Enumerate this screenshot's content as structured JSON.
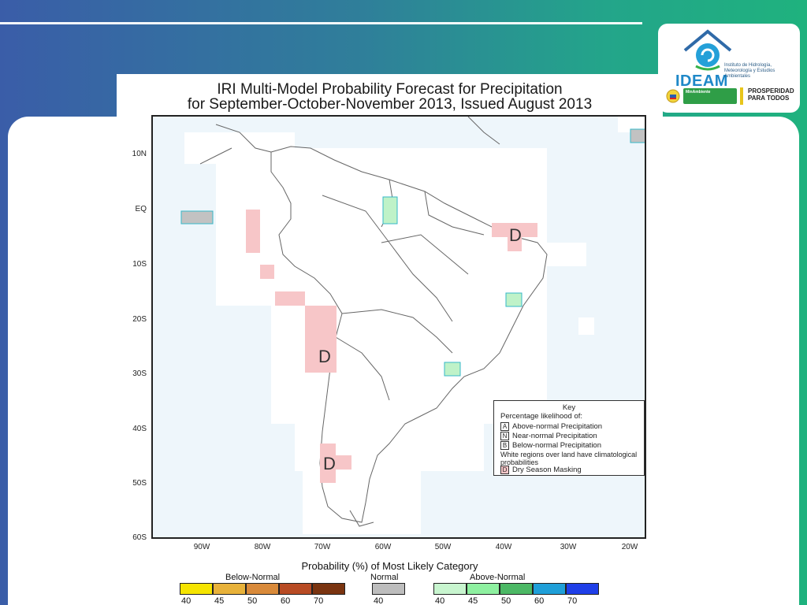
{
  "logo": {
    "ideam_name": "IDEAM",
    "ideam_subtitle": "Instituto de Hidrología, Meteorología y Estudios Ambientales",
    "minambiente_label": "MinAmbiente",
    "prosperidad_line1": "PROSPERIDAD",
    "prosperidad_line2": "PARA TODOS",
    "colors": {
      "ideam_blue": "#1f88c8",
      "minambiente_green": "#2f9e47"
    }
  },
  "map": {
    "title_line1": "IRI Multi-Model Probability Forecast for Precipitation",
    "title_line2": "for September-October-November 2013, Issued August 2013",
    "lat_labels": [
      "10N",
      "EQ",
      "10S",
      "20S",
      "30S",
      "40S",
      "50S",
      "60S"
    ],
    "lon_labels": [
      "90W",
      "80W",
      "70W",
      "60W",
      "50W",
      "40W",
      "30W",
      "20W"
    ],
    "dry_season_marks": [
      "D",
      "D",
      "D"
    ],
    "key": {
      "title": "Key",
      "subtitle": "Percentage likelihood of:",
      "items": [
        {
          "letter": "A",
          "label": "Above-normal Precipitation"
        },
        {
          "letter": "N",
          "label": "Near-normal Precipitation"
        },
        {
          "letter": "B",
          "label": "Below-normal Precipitation"
        }
      ],
      "note": "White regions over land have climatological probabilities",
      "dry_letter": "D",
      "dry_label": "Dry Season Masking"
    }
  },
  "colorbar": {
    "title": "Probability (%) of Most Likely Category",
    "below_label": "Below-Normal",
    "normal_label": "Normal",
    "above_label": "Above-Normal",
    "below_colors": [
      "#f5e400",
      "#e8b23a",
      "#d98a3a",
      "#b84b24",
      "#7a3410"
    ],
    "normal_color": "#bdbdbd",
    "above_colors": [
      "#c8f5cf",
      "#8ef0a0",
      "#4cb865",
      "#1f9fd8",
      "#1f3fe8"
    ],
    "below_ticks": [
      "40",
      "45",
      "50",
      "60",
      "70"
    ],
    "normal_ticks": [
      "40"
    ],
    "above_ticks": [
      "40",
      "45",
      "50",
      "60",
      "70"
    ]
  }
}
